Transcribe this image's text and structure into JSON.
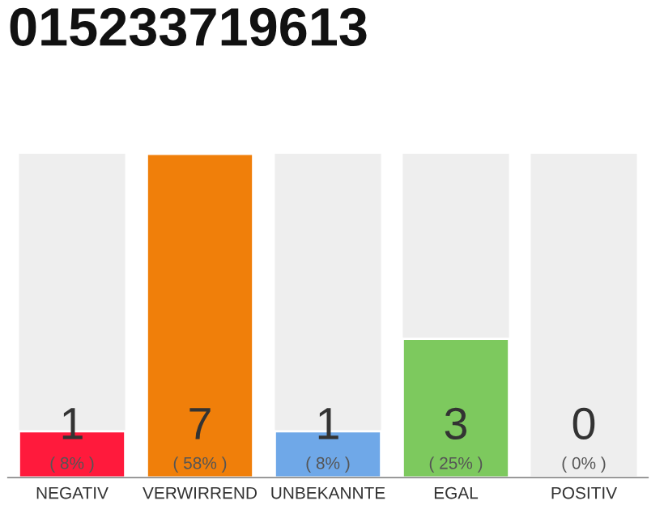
{
  "chart_data": {
    "type": "bar",
    "title": "015233719613",
    "categories": [
      "NEGATIV",
      "VERWIRREND",
      "UNBEKANNTE",
      "EGAL",
      "POSITIV"
    ],
    "values": [
      1,
      7,
      1,
      3,
      0
    ],
    "colors": [
      "#ff1a3c",
      "#f07f0a",
      "#6fa8e8",
      "#7dc95e",
      null
    ],
    "value_labels": [
      "1\n( 8% )",
      "7\n( 58% )",
      "1\n( 8% )",
      "3\n( 25% )",
      "0\n( 0% )"
    ],
    "grid": false,
    "legend": false
  }
}
